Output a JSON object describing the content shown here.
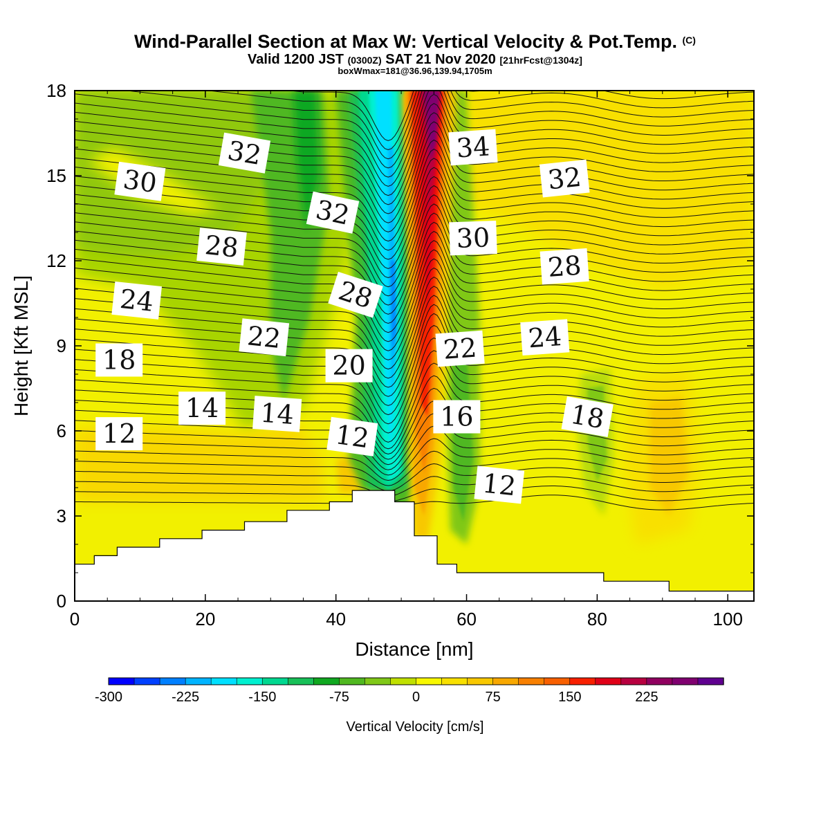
{
  "title": {
    "main": "Wind-Parallel Section at Max W: Vertical Velocity & Pot.Temp.",
    "copyright": "(C)",
    "valid_a": "Valid 1200 JST",
    "valid_b": "(0300Z)",
    "valid_c": "SAT 21 Nov 2020",
    "valid_d": "[21hrFcst@1304z]",
    "info": "boxWmax=181@36.96,139.94,1705m"
  },
  "chart_data": {
    "type": "heatmap",
    "xlabel": "Distance [nm]",
    "ylabel": "Height [Kft MSL]",
    "xlim": [
      0,
      104
    ],
    "ylim": [
      0,
      18
    ],
    "xticks": [
      "0",
      "20",
      "40",
      "60",
      "80",
      "100"
    ],
    "yticks": [
      "0",
      "3",
      "6",
      "9",
      "12",
      "15",
      "18"
    ],
    "colorbar": {
      "title": "Vertical Velocity [cm/s]",
      "labels": [
        "-300",
        "-225",
        "-150",
        "-75",
        "0",
        "75",
        "150",
        "225"
      ],
      "bins": [
        -300,
        -275,
        -250,
        -225,
        -200,
        -175,
        -150,
        -125,
        -100,
        -75,
        -50,
        -25,
        0,
        25,
        50,
        75,
        100,
        125,
        150,
        175,
        200,
        225,
        250,
        275
      ],
      "colors": [
        "#0000ff",
        "#0040ff",
        "#0080ff",
        "#00b4ff",
        "#00e0ff",
        "#00f0d0",
        "#00d890",
        "#18c058",
        "#10a820",
        "#50b820",
        "#80c818",
        "#c0e000",
        "#f8f800",
        "#f8e000",
        "#f8c800",
        "#f8a800",
        "#f88000",
        "#f86000",
        "#f82000",
        "#e00018",
        "#b80040",
        "#900060",
        "#800070",
        "#600090"
      ]
    },
    "vertical_velocity_regions": [
      {
        "label": "strong updraft",
        "x": [
          51.5,
          57
        ],
        "y": [
          4,
          18
        ],
        "max_cm_s": 275
      },
      {
        "label": "strong downdraft",
        "x": [
          44,
          51
        ],
        "y": [
          3.9,
          18
        ],
        "min_cm_s": -275
      },
      {
        "label": "moderate downdraft",
        "x": [
          0,
          40
        ],
        "y": [
          6,
          18
        ],
        "min_cm_s": -75
      },
      {
        "label": "moderate downdraft",
        "x": [
          78,
          82
        ],
        "y": [
          3,
          8
        ],
        "min_cm_s": -50
      }
    ],
    "terrain_height_kft": [
      [
        0,
        1.3
      ],
      [
        3,
        1.6
      ],
      [
        6.5,
        1.9
      ],
      [
        13,
        2.2
      ],
      [
        19.5,
        2.5
      ],
      [
        26,
        2.8
      ],
      [
        32.5,
        3.2
      ],
      [
        39,
        3.5
      ],
      [
        42.5,
        3.9
      ],
      [
        49,
        3.5
      ],
      [
        52,
        2.3
      ],
      [
        55.5,
        1.3
      ],
      [
        58.5,
        1.0
      ],
      [
        81,
        0.7
      ],
      [
        91,
        0.35
      ],
      [
        104,
        0.35
      ]
    ],
    "isentrope_labels": [
      {
        "text": "30",
        "x": 10,
        "y": 14.8
      },
      {
        "text": "32",
        "x": 26,
        "y": 15.8
      },
      {
        "text": "32",
        "x": 39.5,
        "y": 13.7
      },
      {
        "text": "34",
        "x": 61,
        "y": 16.0
      },
      {
        "text": "32",
        "x": 75,
        "y": 14.9
      },
      {
        "text": "28",
        "x": 22.5,
        "y": 12.5
      },
      {
        "text": "30",
        "x": 61,
        "y": 12.8
      },
      {
        "text": "28",
        "x": 43,
        "y": 10.8
      },
      {
        "text": "28",
        "x": 75,
        "y": 11.8
      },
      {
        "text": "24",
        "x": 9.5,
        "y": 10.6
      },
      {
        "text": "22",
        "x": 29,
        "y": 9.3
      },
      {
        "text": "24",
        "x": 72,
        "y": 9.3
      },
      {
        "text": "22",
        "x": 59,
        "y": 8.9
      },
      {
        "text": "20",
        "x": 42,
        "y": 8.3
      },
      {
        "text": "18",
        "x": 6.8,
        "y": 8.5
      },
      {
        "text": "18",
        "x": 78.5,
        "y": 6.5
      },
      {
        "text": "14",
        "x": 19.5,
        "y": 6.8
      },
      {
        "text": "14",
        "x": 31,
        "y": 6.6
      },
      {
        "text": "16",
        "x": 58.5,
        "y": 6.5
      },
      {
        "text": "12",
        "x": 6.8,
        "y": 5.9
      },
      {
        "text": "12",
        "x": 42.5,
        "y": 5.8
      },
      {
        "text": "12",
        "x": 65,
        "y": 4.1
      }
    ]
  }
}
